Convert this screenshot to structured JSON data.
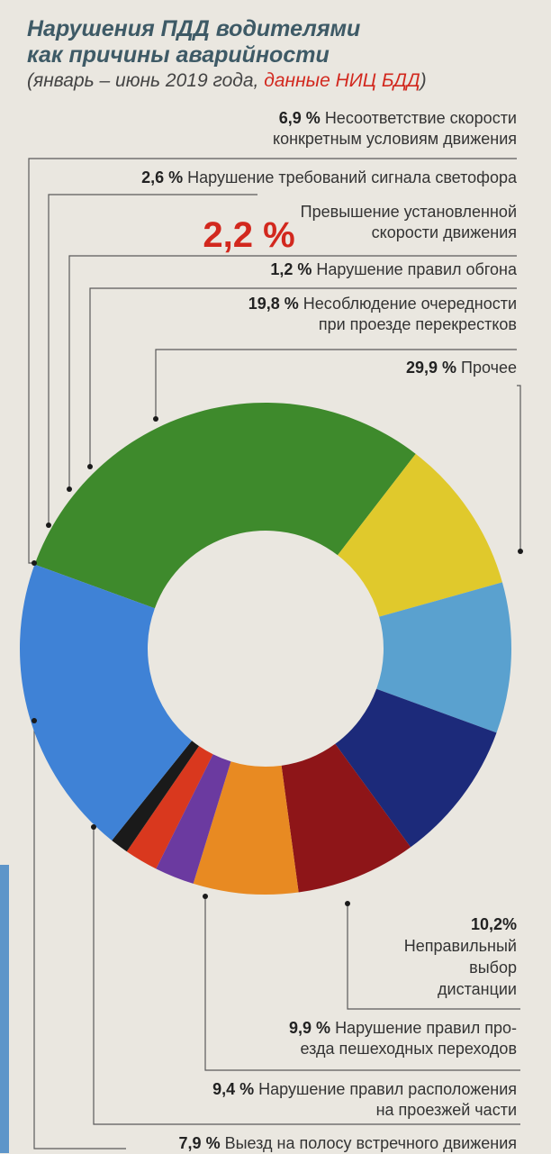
{
  "title_line1": "Нарушения ПДД водителями",
  "title_line2": "как причины аварийности",
  "subtitle_prefix": "(январь – июнь 2019 года, ",
  "subtitle_source": "данные НИЦ БДД",
  "subtitle_suffix": ")",
  "chart_data": {
    "type": "pie",
    "title": "Нарушения ПДД водителями как причины аварийности",
    "subtitle": "(январь – июнь 2019 года, данные НИЦ БДД)",
    "unit": "%",
    "slices": [
      {
        "pct": "29,9 %",
        "label": "Прочее",
        "value": 29.9,
        "color": "#3e8a2c"
      },
      {
        "pct": "10,2%",
        "label": "Неправильный выбор дистанции",
        "value": 10.2,
        "color": "#e0c92c"
      },
      {
        "pct": "9,9 %",
        "label": "Нарушение правил проезда пешеходных переходов",
        "value": 9.9,
        "color": "#5aa1cf"
      },
      {
        "pct": "9,4 %",
        "label": "Нарушение правил расположения на проезжей части",
        "value": 9.4,
        "color": "#1c2a7a"
      },
      {
        "pct": "7,9 %",
        "label": "Выезд на полосу встречного движения",
        "value": 7.9,
        "color": "#8e1518"
      },
      {
        "pct": "6,9 %",
        "label": "Несоответствие скорости конкретным условиям движения",
        "value": 6.9,
        "color": "#e88a22"
      },
      {
        "pct": "2,6 %",
        "label": "Нарушение требований сигнала светофора",
        "value": 2.6,
        "color": "#6b3aa0"
      },
      {
        "pct": "2,2 %",
        "label": "Превышение установленной скорости движения",
        "value": 2.2,
        "color": "#d9381e"
      },
      {
        "pct": "1,2 %",
        "label": "Нарушение правил обгона",
        "value": 1.2,
        "color": "#1a1a1a"
      },
      {
        "pct": "19,8 %",
        "label": "Несоблюдение очередности при проезде перекрестков",
        "value": 19.8,
        "color": "#3f82d6"
      }
    ]
  },
  "labels": {
    "l_69_pct": "6,9 %",
    "l_69_a": "Несоответствие скорости",
    "l_69_b": "конкретным условиям движения",
    "l_26_pct": "2,6 %",
    "l_26_a": "Нарушение требований сигнала светофора",
    "l_22_pct": "2,2 %",
    "l_22_a": "Превышение установленной",
    "l_22_b": "скорости движения",
    "l_12_pct": "1,2 %",
    "l_12_a": "Нарушение правил обгона",
    "l_198_pct": "19,8 %",
    "l_198_a": "Несоблюдение очередности",
    "l_198_b": "при проезде перекрестков",
    "l_299_pct": "29,9 %",
    "l_299_a": "Прочее",
    "l_102_pct": "10,2%",
    "l_102_a": "Неправильный",
    "l_102_b": "выбор",
    "l_102_c": "дистанции",
    "l_99_pct": "9,9 %",
    "l_99_a": "Нарушение правил про-",
    "l_99_b": "езда пешеходных переходов",
    "l_94_pct": "9,4 %",
    "l_94_a": "Нарушение правил расположения",
    "l_94_b": "на проезжей части",
    "l_79_pct": "7,9 %",
    "l_79_a": "Выезд на полосу встречного движения"
  }
}
